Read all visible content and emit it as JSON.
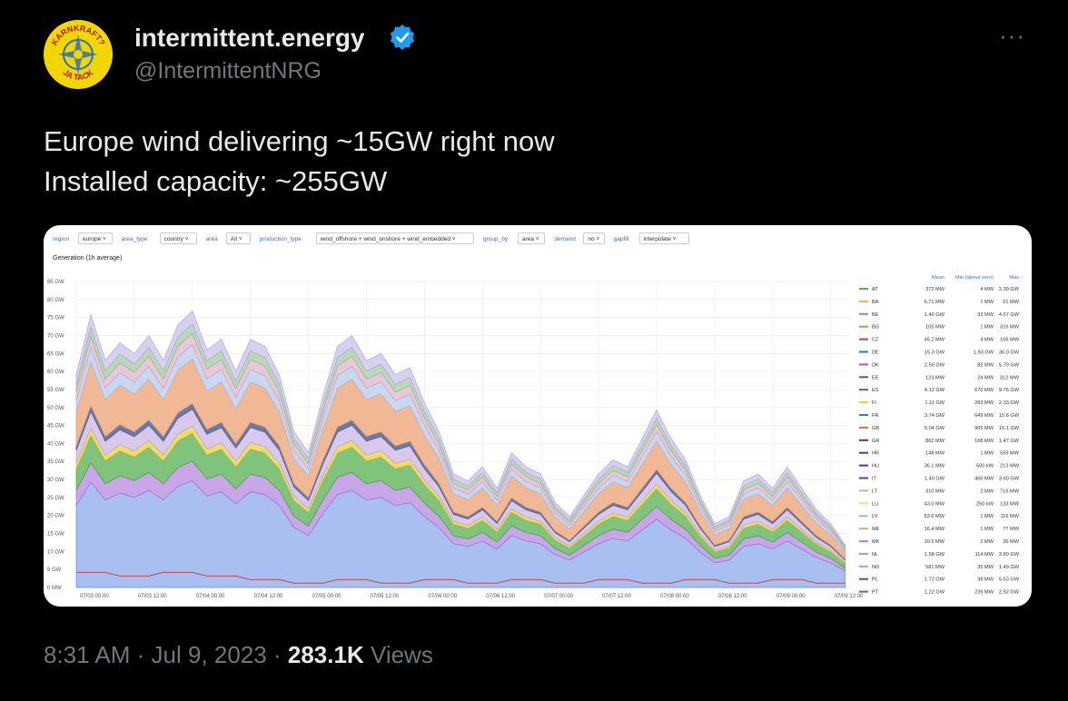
{
  "tweet": {
    "display_name": "intermittent.energy",
    "handle": "@IntermittentNRG",
    "avatar_text_top": "KARNKRAFT?",
    "avatar_text_bottom": "JA TACK",
    "line1": "Europe wind delivering ~15GW right now",
    "line2": "Installed capacity: ~255GW",
    "time": "8:31 AM",
    "date": "Jul 9, 2023",
    "views_count": "283.1K",
    "views_label": "Views",
    "more_label": "···"
  },
  "filters": [
    {
      "label": "region",
      "value": "europe"
    },
    {
      "label": "area_type",
      "value": "country"
    },
    {
      "label": "area",
      "value": "All"
    },
    {
      "label": "production_type",
      "value": "wind_offshore + wind_onshore + wind_embedded"
    },
    {
      "label": "group_by",
      "value": "area"
    },
    {
      "label": "demand",
      "value": "no"
    },
    {
      "label": "gapfill",
      "value": "interpolate"
    }
  ],
  "chart_data": {
    "type": "area",
    "title": "Generation (1h average)",
    "y_ticks": [
      "0 MW",
      "5 GW",
      "10 GW",
      "15 GW",
      "20 GW",
      "25 GW",
      "30 GW",
      "35 GW",
      "40 GW",
      "45 GW",
      "50 GW",
      "55 GW",
      "60 GW",
      "65 GW",
      "70 GW",
      "75 GW",
      "80 GW",
      "85 GW"
    ],
    "ylim": [
      0,
      85
    ],
    "x_ticks": [
      "07/03 00:00",
      "07/03 12:00",
      "07/04 00:00",
      "07/04 12:00",
      "07/05 00:00",
      "07/05 12:00",
      "07/06 00:00",
      "07/06 12:00",
      "07/07 00:00",
      "07/07 12:00",
      "07/08 00:00",
      "07/08 12:00",
      "07/09 00:00",
      "07/09 12:00"
    ],
    "stacked": true,
    "grid": true,
    "x_hours": [
      0,
      3,
      6,
      9,
      12,
      15,
      18,
      21,
      24,
      27,
      30,
      33,
      36,
      39,
      42,
      45,
      48,
      51,
      54,
      57,
      60,
      63,
      66,
      69,
      72,
      75,
      78,
      81,
      84,
      87,
      90,
      93,
      96,
      99,
      102,
      105,
      108,
      111,
      114,
      117,
      120,
      123,
      126,
      129,
      132,
      135,
      138,
      141,
      144,
      147,
      150,
      153,
      156,
      159
    ],
    "total_gw": [
      60,
      77,
      64,
      69,
      66,
      71,
      64,
      74,
      78,
      67,
      70,
      61,
      70,
      68,
      60,
      44,
      38,
      54,
      68,
      71,
      64,
      66,
      60,
      62,
      52,
      44,
      32,
      30,
      34,
      28,
      38,
      34,
      32,
      24,
      20,
      26,
      32,
      36,
      34,
      42,
      50,
      42,
      36,
      26,
      18,
      20,
      30,
      32,
      28,
      34,
      28,
      22,
      18,
      12
    ],
    "legend": {
      "headers": [
        "Mean",
        "Min (above zero)",
        "Max"
      ],
      "rows": [
        {
          "code": "AT",
          "color": "#5fae4a",
          "mean": "372 MW",
          "min": "4 MW",
          "max": "2.30 GW"
        },
        {
          "code": "BA",
          "color": "#e8b93a",
          "mean": "6.71 MW",
          "min": "1 MW",
          "max": "51 MW"
        },
        {
          "code": "BE",
          "color": "#56a2d6",
          "mean": "1.40 GW",
          "min": "33 MW",
          "max": "4.57 GW"
        },
        {
          "code": "BG",
          "color": "#e8883a",
          "mean": "105 MW",
          "min": "1 MW",
          "max": "316 MW"
        },
        {
          "code": "CZ",
          "color": "#c23c3c",
          "mean": "45.2 MW",
          "min": "4 MW",
          "max": "166 MW"
        },
        {
          "code": "DE",
          "color": "#3a6fd8",
          "mean": "15.3 GW",
          "min": "1.93 GW",
          "max": "36.0 GW"
        },
        {
          "code": "DK",
          "color": "#a25ad4",
          "mean": "2.50 GW",
          "min": "82 MW",
          "max": "5.79 GW"
        },
        {
          "code": "EE",
          "color": "#6b4a8c",
          "mean": "123 MW",
          "min": "24 MW",
          "max": "312 MW"
        },
        {
          "code": "ES",
          "color": "#2f8a3a",
          "mean": "4.12 GW",
          "min": "670 MW",
          "max": "9.76 GW"
        },
        {
          "code": "FI",
          "color": "#e8d23a",
          "mean": "1.11 GW",
          "min": "283 MW",
          "max": "2.33 GW"
        },
        {
          "code": "FR",
          "color": "#3a78c8",
          "mean": "3.74 GW",
          "min": "649 MW",
          "max": "10.8 GW"
        },
        {
          "code": "GB",
          "color": "#e86a2a",
          "mean": "5.04 GW",
          "min": "905 MW",
          "max": "15.1 GW"
        },
        {
          "code": "GR",
          "color": "#8c2a2a",
          "mean": "862 MW",
          "min": "168 MW",
          "max": "1.47 GW"
        },
        {
          "code": "HR",
          "color": "#1c4fa0",
          "mean": "148 MW",
          "min": "1 MW",
          "max": "559 MW"
        },
        {
          "code": "HU",
          "color": "#6a2a8c",
          "mean": "36.1 MW",
          "min": "500 kW",
          "max": "213 MW"
        },
        {
          "code": "IT",
          "color": "#4a4a7a",
          "mean": "1.40 GW",
          "min": "466 MW",
          "max": "3.60 GW"
        },
        {
          "code": "LT",
          "color": "#a6c88a",
          "mean": "310 MW",
          "min": "2 MW",
          "max": "716 MW"
        },
        {
          "code": "LU",
          "color": "#f0dc8a",
          "mean": "43.0 MW",
          "min": "250 kW",
          "max": "133 MW"
        },
        {
          "code": "LV",
          "color": "#8ac8e8",
          "mean": "53.6 MW",
          "min": "1 MW",
          "max": "116 MW"
        },
        {
          "code": "ME",
          "color": "#f0a86a",
          "mean": "16.4 MW",
          "min": "1 MW",
          "max": "77 MW"
        },
        {
          "code": "MK",
          "color": "#e87a7a",
          "mean": "10.5 MW",
          "min": "2 MW",
          "max": "36 MW"
        },
        {
          "code": "NL",
          "color": "#7aa8d8",
          "mean": "1.58 GW",
          "min": "114 MW",
          "max": "3.80 GW"
        },
        {
          "code": "NO",
          "color": "#c88ae0",
          "mean": "581 MW",
          "min": "35 MW",
          "max": "1.49 GW"
        },
        {
          "code": "PL",
          "color": "#3a5ab8",
          "mean": "1.72 GW",
          "min": "38 MW",
          "max": "5.63 GW"
        },
        {
          "code": "PT",
          "color": "#3a8a4a",
          "mean": "1.22 GW",
          "min": "239 MW",
          "max": "2.52 GW"
        }
      ]
    }
  }
}
